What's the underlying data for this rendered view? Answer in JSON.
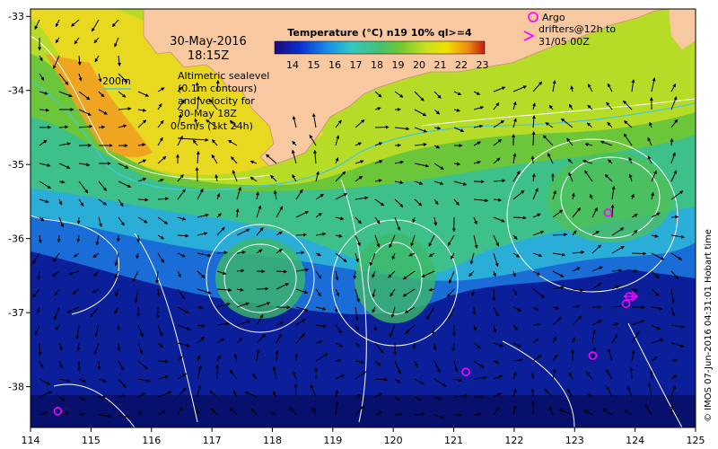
{
  "map": {
    "date": "30-May-2016",
    "time": "18:15Z",
    "depth_label": "200m",
    "altimetry_lines": [
      "Altimetric sealevel",
      "(0.1m contours)",
      "and velocity for",
      "30-May 18Z",
      "0.5m/s (1kt 24h)"
    ],
    "colorbar": {
      "title": "Temperature (°C) n19 10% ql>=4",
      "ticks": [
        "14",
        "15",
        "16",
        "17",
        "18",
        "19",
        "20",
        "21",
        "22",
        "23"
      ],
      "colors": [
        "#1a0a7a",
        "#0a2fd0",
        "#1a8ee8",
        "#33c8c0",
        "#44c070",
        "#70c830",
        "#c8e020",
        "#f0e000",
        "#f08a10",
        "#c02010"
      ]
    },
    "legend": {
      "circle_label": "Argo",
      "arrow_label_lines": [
        "drifters@12h to",
        "31/05 00Z"
      ],
      "circle_color": "#ff00ff",
      "arrow_color": "#ff00ff"
    },
    "credit": "© IMOS 07-Jun-2016 04:31:01 Hobart time",
    "x_ticks": [
      "114",
      "115",
      "116",
      "117",
      "118",
      "119",
      "120",
      "121",
      "122",
      "123",
      "124",
      "125"
    ],
    "y_ticks": [
      "-33",
      "-34",
      "-35",
      "-36",
      "-37",
      "-38"
    ],
    "land_color": "#f8c8a0",
    "argo_points": [
      {
        "lon": 114.45,
        "lat": -38.33
      },
      {
        "lon": 121.2,
        "lat": -37.8
      },
      {
        "lon": 123.3,
        "lat": -37.58
      },
      {
        "lon": 123.55,
        "lat": -35.65
      },
      {
        "lon": 123.85,
        "lat": -36.88
      },
      {
        "lon": 123.9,
        "lat": -36.78
      }
    ]
  }
}
